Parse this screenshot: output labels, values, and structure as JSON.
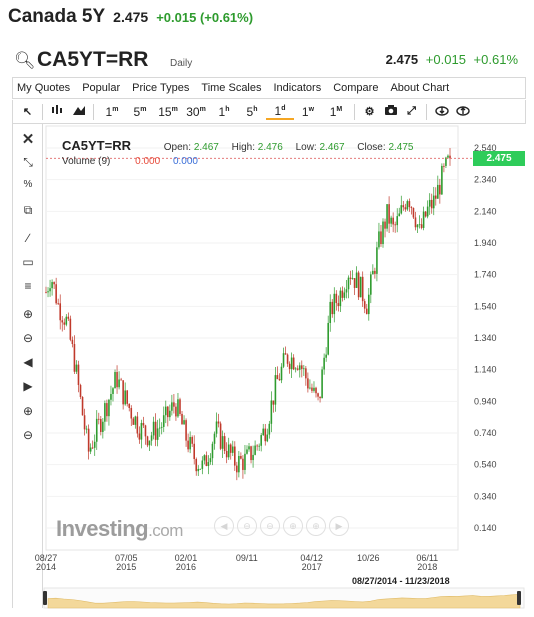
{
  "header": {
    "instrument_name": "Canada 5Y",
    "last_price": "2.475",
    "change": "+0.015 (+0.61%)"
  },
  "symbol_row": {
    "symbol": "CA5YT=RR",
    "period": "Daily",
    "price": "2.475",
    "change": "+0.015",
    "change_pct": "+0.61%"
  },
  "menu": {
    "items": [
      "My Quotes",
      "Popular",
      "Price Types",
      "Time Scales",
      "Indicators",
      "Compare",
      "About Chart"
    ]
  },
  "toolbar": {
    "resolutions": [
      {
        "num": "1",
        "unit": "m"
      },
      {
        "num": "5",
        "unit": "m"
      },
      {
        "num": "15",
        "unit": "m"
      },
      {
        "num": "30",
        "unit": "m"
      },
      {
        "num": "1",
        "unit": "h"
      },
      {
        "num": "5",
        "unit": "h"
      },
      {
        "num": "1",
        "unit": "d"
      },
      {
        "num": "1",
        "unit": "w"
      },
      {
        "num": "1",
        "unit": "M"
      }
    ],
    "active_resolution": "1d",
    "tool_icons": [
      "cursor-icon",
      "candlestick-icon",
      "mountain-icon",
      "gear-icon",
      "camera-icon",
      "fullscreen-icon",
      "download-icon",
      "upload-icon"
    ]
  },
  "left_tools": [
    "close-icon",
    "crosshair-icon",
    "fibonacci-icon",
    "copy-icon",
    "trendline-icon",
    "rectangle-icon",
    "lines-icon",
    "zoom-in-icon",
    "zoom-out-icon",
    "scroll-left-icon",
    "scroll-right-icon",
    "person-add-icon",
    "person-remove-icon"
  ],
  "legend": {
    "symbol": "CA5YT=RR",
    "open_label": "Open:",
    "open": "2.467",
    "high_label": "High:",
    "high": "2.476",
    "low_label": "Low:",
    "low": "2.467",
    "close_label": "Close:",
    "close": "2.475"
  },
  "volume": {
    "label": "Volume (9)",
    "value1": "0.000",
    "value2": "0.000"
  },
  "price_tag": "2.475",
  "watermark": {
    "brand": "Investing",
    "domain": ".com"
  },
  "range_label": "08/27/2014 - 11/23/2018",
  "colors": {
    "up": "#2e9b2e",
    "down": "#c0392b",
    "tag": "#2ecc5a",
    "navigator": "#f3d89a"
  },
  "chart_data": {
    "type": "candlestick",
    "x_ticks": [
      {
        "label": "08/27",
        "sub": "2014",
        "t": 0
      },
      {
        "label": "07/05",
        "sub": "2015",
        "t": 0.1986
      },
      {
        "label": "02/01",
        "sub": "2016",
        "t": 0.3464
      },
      {
        "label": "09/11",
        "sub": "",
        "t": 0.497
      },
      {
        "label": "04/12",
        "sub": "2017",
        "t": 0.6576
      },
      {
        "label": "10/26",
        "sub": "",
        "t": 0.7977
      },
      {
        "label": "06/11",
        "sub": "2018",
        "t": 0.9437
      }
    ],
    "y_ticks": [
      "2.540",
      "2.340",
      "2.140",
      "1.940",
      "1.740",
      "1.540",
      "1.340",
      "1.140",
      "0.940",
      "0.740",
      "0.540",
      "0.340",
      "0.140"
    ],
    "ylim": [
      0.14,
      2.54
    ],
    "last_close": 2.475,
    "path": [
      {
        "t": 0.0,
        "v": 1.63
      },
      {
        "t": 0.012,
        "v": 1.74
      },
      {
        "t": 0.03,
        "v": 1.55
      },
      {
        "t": 0.05,
        "v": 1.45
      },
      {
        "t": 0.07,
        "v": 1.2
      },
      {
        "t": 0.085,
        "v": 0.95
      },
      {
        "t": 0.105,
        "v": 0.62
      },
      {
        "t": 0.125,
        "v": 0.75
      },
      {
        "t": 0.15,
        "v": 0.92
      },
      {
        "t": 0.175,
        "v": 1.09
      },
      {
        "t": 0.2,
        "v": 0.93
      },
      {
        "t": 0.23,
        "v": 0.78
      },
      {
        "t": 0.255,
        "v": 0.72
      },
      {
        "t": 0.29,
        "v": 0.8
      },
      {
        "t": 0.32,
        "v": 0.93
      },
      {
        "t": 0.345,
        "v": 0.72
      },
      {
        "t": 0.37,
        "v": 0.57
      },
      {
        "t": 0.39,
        "v": 0.52
      },
      {
        "t": 0.42,
        "v": 0.76
      },
      {
        "t": 0.445,
        "v": 0.65
      },
      {
        "t": 0.47,
        "v": 0.55
      },
      {
        "t": 0.495,
        "v": 0.57
      },
      {
        "t": 0.52,
        "v": 0.65
      },
      {
        "t": 0.545,
        "v": 0.78
      },
      {
        "t": 0.57,
        "v": 1.05
      },
      {
        "t": 0.595,
        "v": 1.22
      },
      {
        "t": 0.625,
        "v": 1.2
      },
      {
        "t": 0.65,
        "v": 1.05
      },
      {
        "t": 0.675,
        "v": 0.92
      },
      {
        "t": 0.69,
        "v": 1.25
      },
      {
        "t": 0.705,
        "v": 1.52
      },
      {
        "t": 0.725,
        "v": 1.6
      },
      {
        "t": 0.75,
        "v": 1.77
      },
      {
        "t": 0.775,
        "v": 1.67
      },
      {
        "t": 0.795,
        "v": 1.55
      },
      {
        "t": 0.81,
        "v": 1.75
      },
      {
        "t": 0.825,
        "v": 1.95
      },
      {
        "t": 0.845,
        "v": 2.12
      },
      {
        "t": 0.86,
        "v": 2.02
      },
      {
        "t": 0.875,
        "v": 2.1
      },
      {
        "t": 0.895,
        "v": 2.25
      },
      {
        "t": 0.91,
        "v": 2.15
      },
      {
        "t": 0.925,
        "v": 2.0
      },
      {
        "t": 0.945,
        "v": 2.15
      },
      {
        "t": 0.96,
        "v": 2.2
      },
      {
        "t": 0.98,
        "v": 2.35
      },
      {
        "t": 1.0,
        "v": 2.475
      }
    ]
  }
}
